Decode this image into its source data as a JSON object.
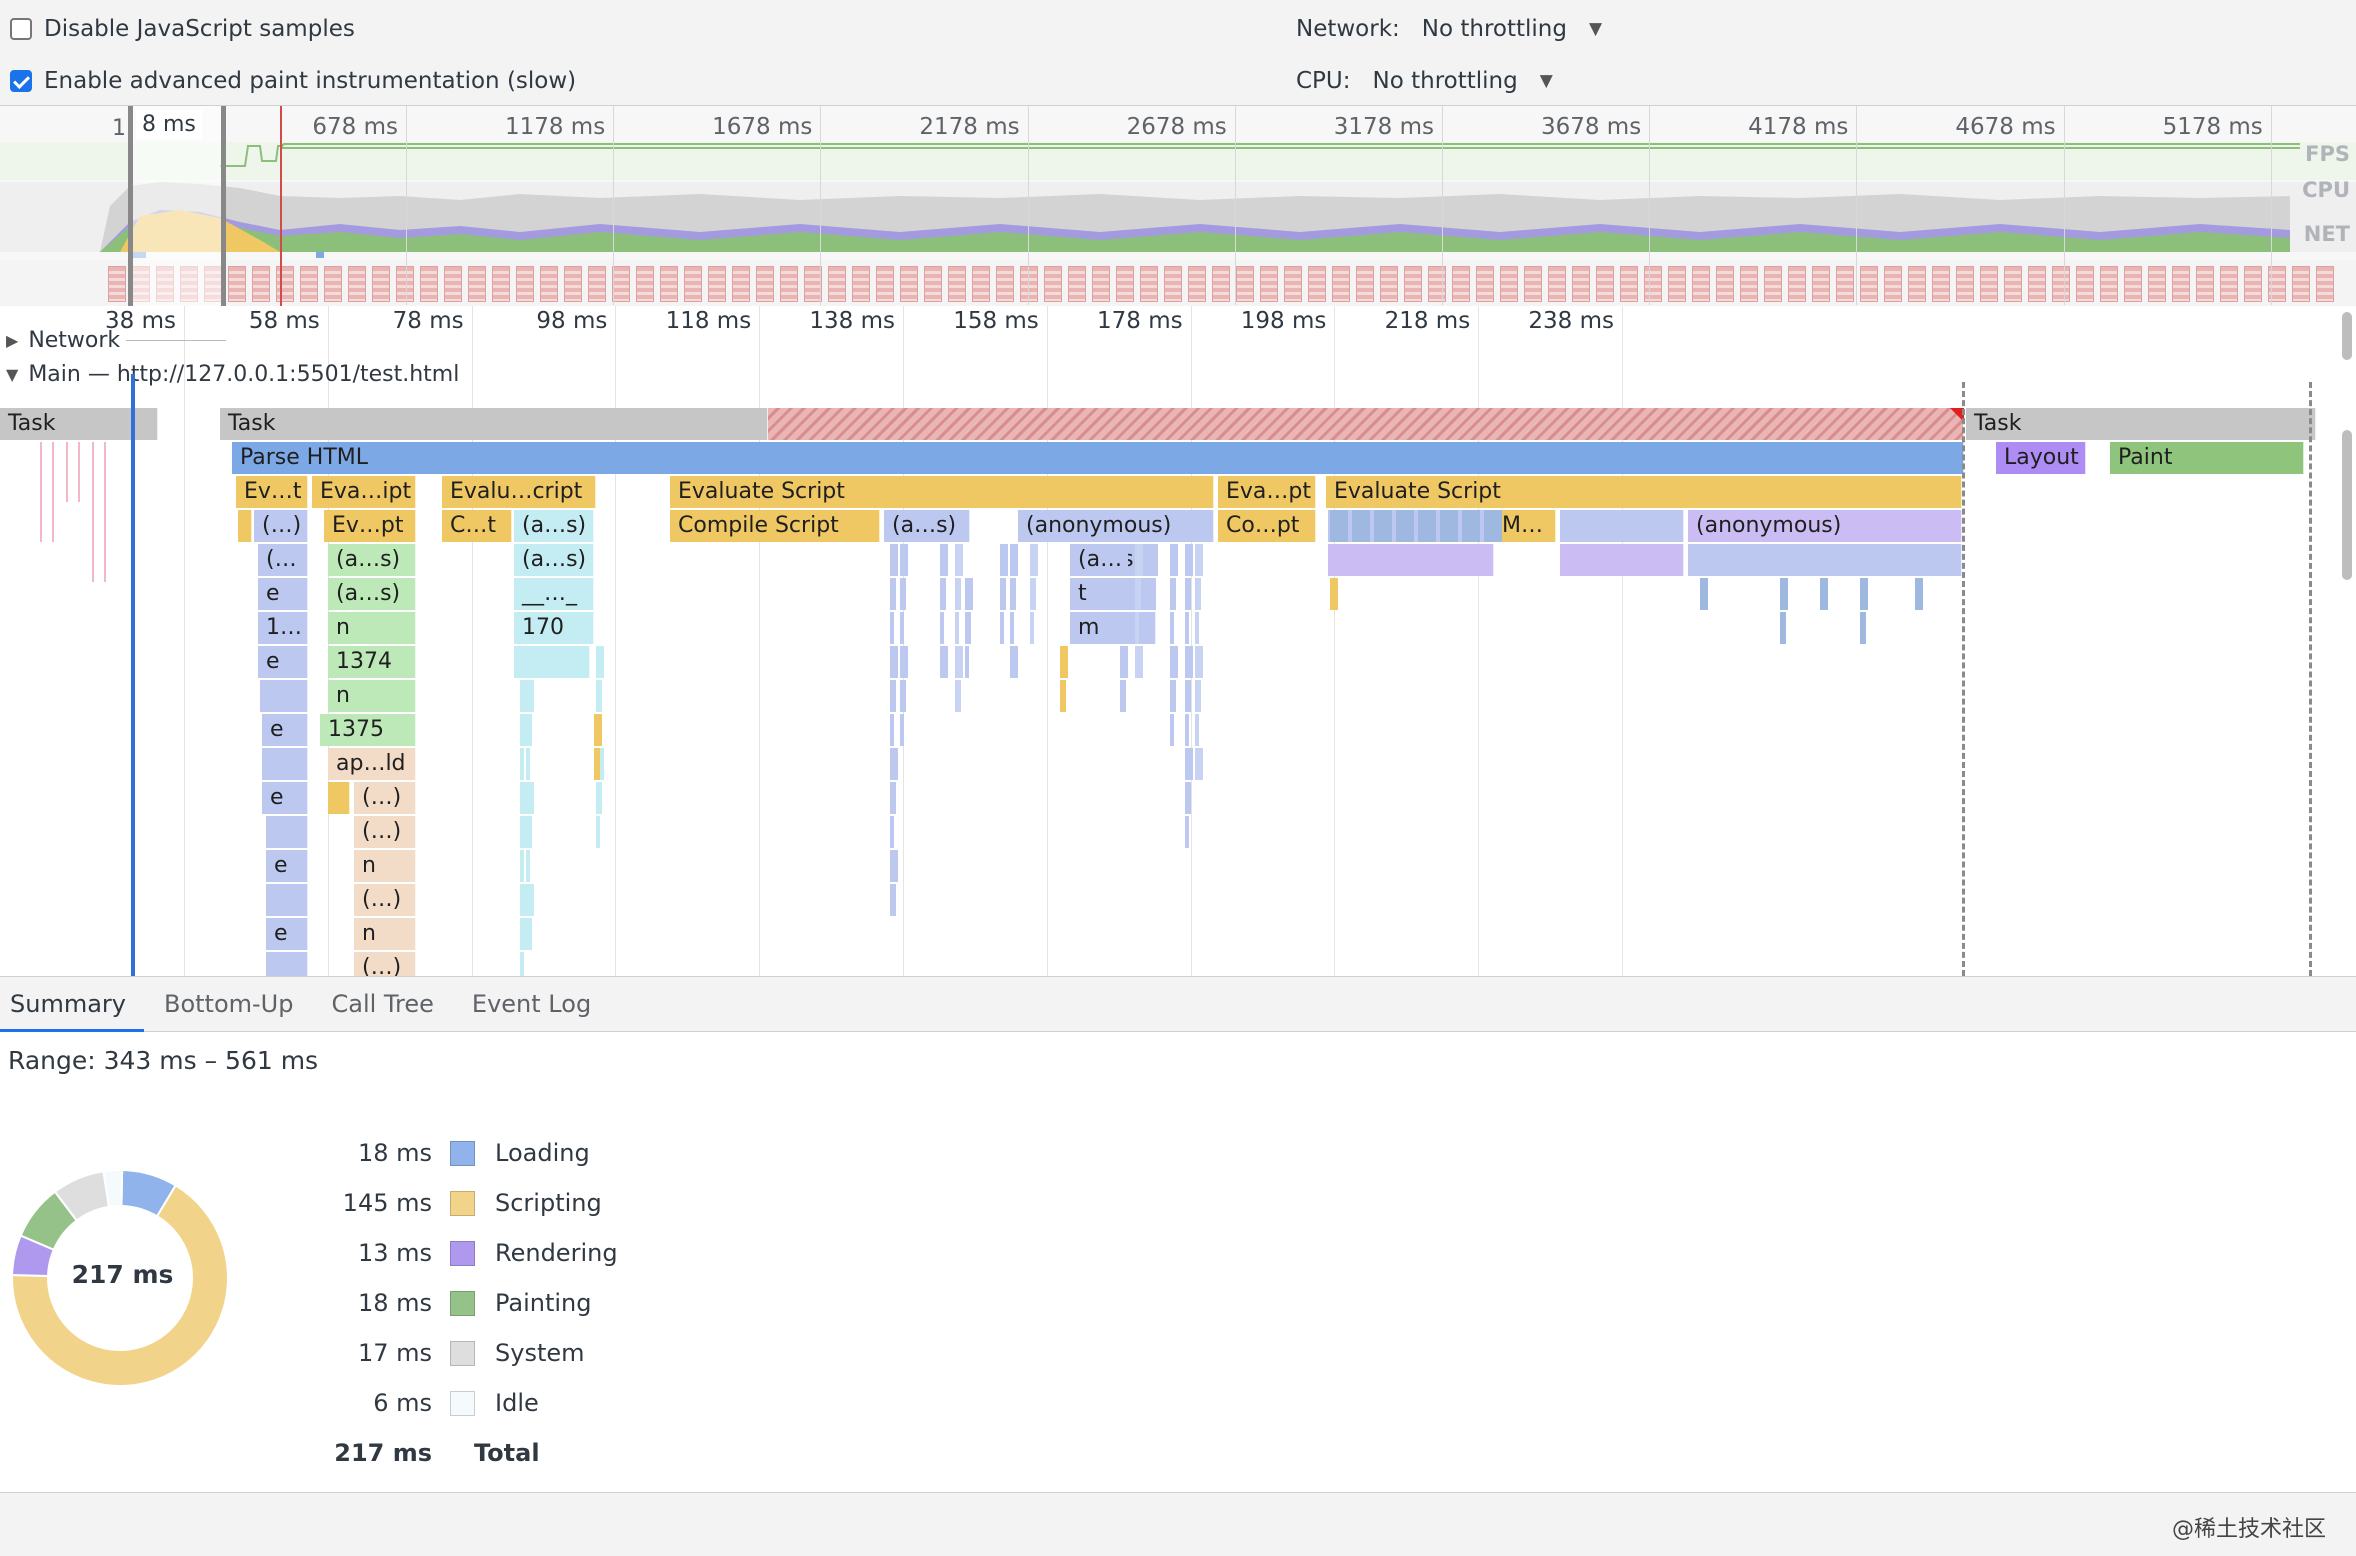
{
  "toolbar": {
    "disable_js_label": "Disable JavaScript samples",
    "disable_js_checked": false,
    "advanced_paint_label": "Enable advanced paint instrumentation (slow)",
    "advanced_paint_checked": true,
    "network_label": "Network:",
    "network_value": "No throttling",
    "cpu_label": "CPU:",
    "cpu_value": "No throttling"
  },
  "overview": {
    "selection_label": "8 ms",
    "start_marker": "1",
    "ticks": [
      "678 ms",
      "1178 ms",
      "1678 ms",
      "2178 ms",
      "2678 ms",
      "3178 ms",
      "3678 ms",
      "4178 ms",
      "4678 ms",
      "5178 ms"
    ],
    "lanes": [
      "FPS",
      "CPU",
      "NET"
    ]
  },
  "flame": {
    "ticks": [
      "38 ms",
      "58 ms",
      "78 ms",
      "98 ms",
      "118 ms",
      "138 ms",
      "158 ms",
      "178 ms",
      "198 ms",
      "218 ms",
      "238 ms"
    ],
    "network_track": "Network",
    "main_track": "Main — http://127.0.0.1:5501/test.html",
    "labels": {
      "task": "Task",
      "parse_html": "Parse HTML",
      "layout": "Layout",
      "paint": "Paint",
      "ev_t": "Ev…t",
      "eva_ipt": "Eva…ipt",
      "evalu_cript": "Evalu…cript",
      "evaluate_script": "Evaluate Script",
      "eva_pt": "Eva…pt",
      "paren": "(…)",
      "ev_pt": "Ev…pt",
      "c_t": "C…t",
      "a_s": "(a…s)",
      "compile_script": "Compile Script",
      "anonymous": "(anonymous)",
      "co_pt": "Co…pt",
      "m_dots": "M…",
      "paren_open": "(…",
      "e": "e",
      "underscores": "__…_",
      "t": "t",
      "one_dots": "1…",
      "n": "n",
      "n170": "170",
      "m": "m",
      "n1374": "1374",
      "n1375": "1375",
      "ap_ld": "ap…ld"
    }
  },
  "tabs": [
    "Summary",
    "Bottom-Up",
    "Call Tree",
    "Event Log"
  ],
  "active_tab": "Summary",
  "summary": {
    "range": "Range: 343 ms – 561 ms",
    "total_center": "217 ms",
    "rows": [
      {
        "value": "18 ms",
        "name": "Loading",
        "color": "#8fb3ea"
      },
      {
        "value": "145 ms",
        "name": "Scripting",
        "color": "#f1d48a"
      },
      {
        "value": "13 ms",
        "name": "Rendering",
        "color": "#af99ee"
      },
      {
        "value": "18 ms",
        "name": "Painting",
        "color": "#94c289"
      },
      {
        "value": "17 ms",
        "name": "System",
        "color": "#dedede"
      },
      {
        "value": "6 ms",
        "name": "Idle",
        "color": "#f5fbfd"
      }
    ],
    "total_value": "217 ms",
    "total_label": "Total"
  },
  "footer": {
    "watermark": "@稀土技术社区"
  }
}
